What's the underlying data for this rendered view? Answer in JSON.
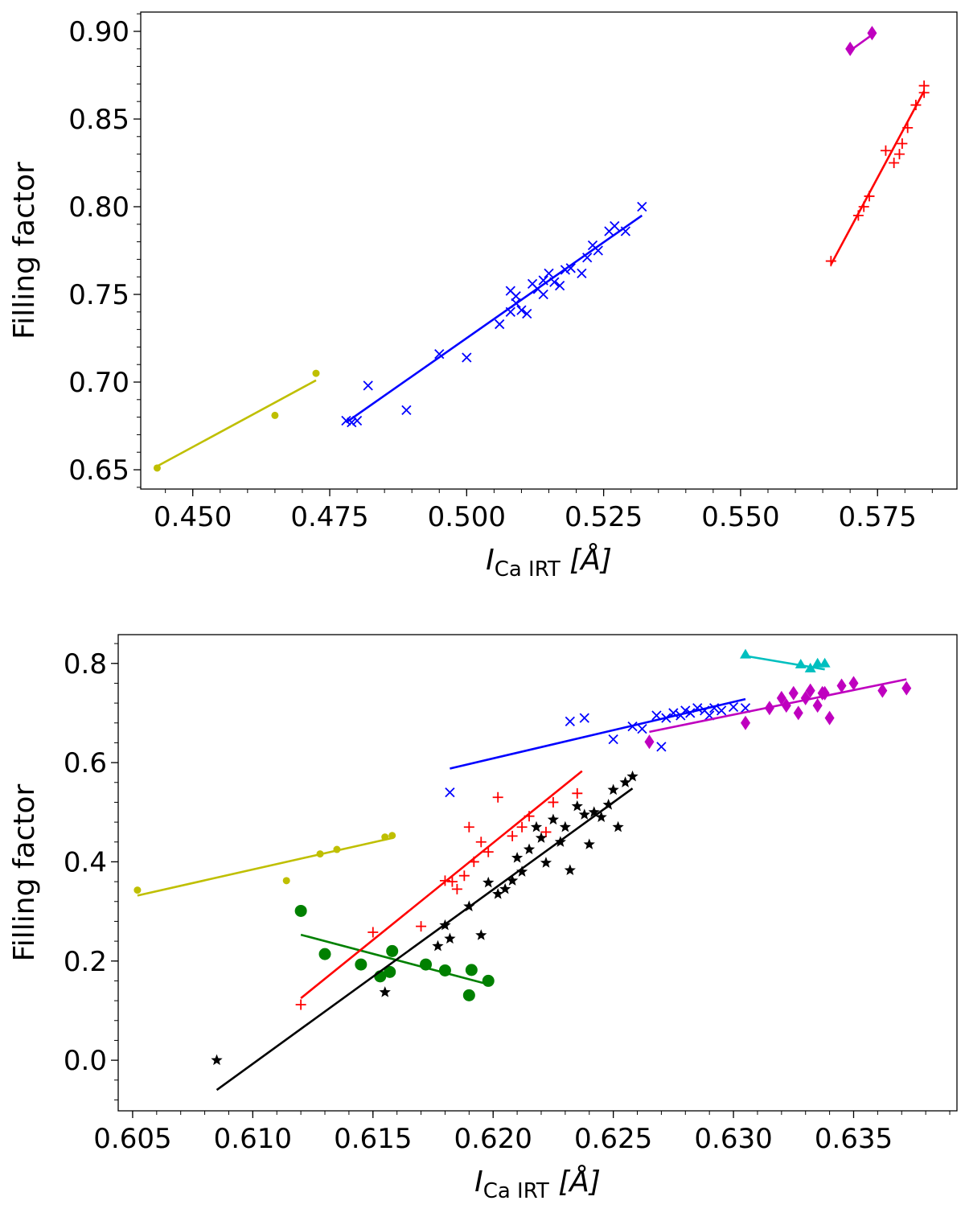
{
  "chart_data": [
    {
      "type": "scatter",
      "title": "",
      "xlabel": {
        "main": "I",
        "sub": "Ca IRT",
        "unit": "[Å]"
      },
      "ylabel": "Filling factor",
      "xlim": [
        0.4405,
        0.5895
      ],
      "ylim": [
        0.639,
        0.911
      ],
      "xticks": [
        0.45,
        0.475,
        0.5,
        0.525,
        0.55,
        0.575
      ],
      "xtick_labels": [
        "0.450",
        "0.475",
        "0.500",
        "0.525",
        "0.550",
        "0.575"
      ],
      "yticks": [
        0.65,
        0.7,
        0.75,
        0.8,
        0.85,
        0.9
      ],
      "ytick_labels": [
        "0.65",
        "0.70",
        "0.75",
        "0.80",
        "0.85",
        "0.90"
      ],
      "grid": false,
      "series": [
        {
          "name": "yellow-dot",
          "color": "#bfbf00",
          "marker": "dot",
          "x": [
            0.4435,
            0.465,
            0.4725
          ],
          "y": [
            0.651,
            0.681,
            0.705
          ],
          "fit": [
            [
              0.4435,
              0.652
            ],
            [
              0.4725,
              0.701
            ]
          ]
        },
        {
          "name": "blue-x",
          "color": "#0000ff",
          "marker": "x",
          "x": [
            0.478,
            0.479,
            0.48,
            0.482,
            0.489,
            0.495,
            0.5,
            0.506,
            0.508,
            0.509,
            0.508,
            0.51,
            0.509,
            0.511,
            0.512,
            0.513,
            0.514,
            0.514,
            0.515,
            0.516,
            0.517,
            0.518,
            0.519,
            0.521,
            0.522,
            0.523,
            0.524,
            0.526,
            0.527,
            0.529,
            0.532
          ],
          "y": [
            0.678,
            0.677,
            0.678,
            0.698,
            0.684,
            0.716,
            0.714,
            0.733,
            0.74,
            0.749,
            0.752,
            0.741,
            0.745,
            0.739,
            0.756,
            0.753,
            0.75,
            0.758,
            0.762,
            0.757,
            0.755,
            0.764,
            0.765,
            0.762,
            0.771,
            0.778,
            0.775,
            0.786,
            0.789,
            0.786,
            0.8
          ],
          "fit": [
            [
              0.478,
              0.677
            ],
            [
              0.532,
              0.795
            ]
          ]
        },
        {
          "name": "red-plus",
          "color": "#ff0000",
          "marker": "plus",
          "x": [
            0.5665,
            0.5715,
            0.5725,
            0.5735,
            0.5765,
            0.578,
            0.579,
            0.5795,
            0.5805,
            0.582,
            0.5835,
            0.5835
          ],
          "y": [
            0.769,
            0.795,
            0.8,
            0.806,
            0.832,
            0.825,
            0.83,
            0.836,
            0.845,
            0.858,
            0.865,
            0.869
          ],
          "fit": [
            [
              0.5665,
              0.767
            ],
            [
              0.5835,
              0.866
            ]
          ]
        },
        {
          "name": "magenta-diamond",
          "color": "#bf00bf",
          "marker": "diamond",
          "x": [
            0.57,
            0.574
          ],
          "y": [
            0.89,
            0.899
          ],
          "fit": [
            [
              0.57,
              0.889
            ],
            [
              0.574,
              0.898
            ]
          ]
        }
      ]
    },
    {
      "type": "scatter",
      "title": "",
      "xlabel": {
        "main": "I",
        "sub": "Ca IRT",
        "unit": "[Å]"
      },
      "ylabel": "Filling factor",
      "xlim": [
        0.6044,
        0.6393
      ],
      "ylim": [
        -0.102,
        0.858
      ],
      "xticks": [
        0.605,
        0.61,
        0.615,
        0.62,
        0.625,
        0.63,
        0.635
      ],
      "xtick_labels": [
        "0.605",
        "0.610",
        "0.615",
        "0.620",
        "0.625",
        "0.630",
        "0.635"
      ],
      "yticks": [
        0.0,
        0.2,
        0.4,
        0.6,
        0.8
      ],
      "ytick_labels": [
        "0.0",
        "0.2",
        "0.4",
        "0.6",
        "0.8"
      ],
      "grid": false,
      "series": [
        {
          "name": "yellow-dot",
          "color": "#bfbf00",
          "marker": "dot",
          "x": [
            0.6052,
            0.6114,
            0.6128,
            0.6135,
            0.6155,
            0.6158
          ],
          "y": [
            0.343,
            0.362,
            0.416,
            0.425,
            0.45,
            0.453
          ],
          "fit": [
            [
              0.6052,
              0.332
            ],
            [
              0.6158,
              0.448
            ]
          ]
        },
        {
          "name": "green-circle",
          "color": "#008000",
          "marker": "circle",
          "x": [
            0.612,
            0.613,
            0.6145,
            0.6153,
            0.6157,
            0.6158,
            0.6172,
            0.618,
            0.619,
            0.6191,
            0.6198
          ],
          "y": [
            0.301,
            0.214,
            0.193,
            0.169,
            0.178,
            0.22,
            0.193,
            0.181,
            0.131,
            0.182,
            0.16
          ],
          "fit": [
            [
              0.612,
              0.253
            ],
            [
              0.6198,
              0.153
            ]
          ]
        },
        {
          "name": "red-plus",
          "color": "#ff0000",
          "marker": "plus",
          "x": [
            0.612,
            0.615,
            0.617,
            0.618,
            0.6183,
            0.6185,
            0.6188,
            0.619,
            0.6192,
            0.6195,
            0.6198,
            0.6202,
            0.6208,
            0.6212,
            0.6215,
            0.6222,
            0.6225,
            0.6235
          ],
          "y": [
            0.112,
            0.258,
            0.27,
            0.362,
            0.36,
            0.345,
            0.372,
            0.47,
            0.4,
            0.44,
            0.42,
            0.53,
            0.452,
            0.47,
            0.492,
            0.46,
            0.52,
            0.538
          ],
          "fit": [
            [
              0.612,
              0.125
            ],
            [
              0.6237,
              0.583
            ]
          ]
        },
        {
          "name": "black-star",
          "color": "#000000",
          "marker": "star",
          "x": [
            0.6085,
            0.6155,
            0.6177,
            0.618,
            0.6182,
            0.619,
            0.6195,
            0.6198,
            0.6202,
            0.6205,
            0.6208,
            0.621,
            0.6212,
            0.6215,
            0.6218,
            0.622,
            0.6222,
            0.6225,
            0.6228,
            0.623,
            0.6232,
            0.6235,
            0.6238,
            0.624,
            0.6242,
            0.6245,
            0.6248,
            0.625,
            0.6252,
            0.6255,
            0.6258
          ],
          "y": [
            0.0,
            0.137,
            0.23,
            0.272,
            0.245,
            0.31,
            0.252,
            0.358,
            0.335,
            0.345,
            0.362,
            0.408,
            0.38,
            0.425,
            0.47,
            0.448,
            0.398,
            0.485,
            0.44,
            0.47,
            0.383,
            0.512,
            0.495,
            0.435,
            0.5,
            0.49,
            0.515,
            0.545,
            0.47,
            0.56,
            0.572
          ],
          "fit": [
            [
              0.6085,
              -0.06
            ],
            [
              0.6258,
              0.548
            ]
          ]
        },
        {
          "name": "blue-x",
          "color": "#0000ff",
          "marker": "x",
          "x": [
            0.6182,
            0.6232,
            0.6238,
            0.625,
            0.6258,
            0.6262,
            0.6268,
            0.627,
            0.6272,
            0.6275,
            0.6278,
            0.628,
            0.6282,
            0.6285,
            0.6288,
            0.629,
            0.6292,
            0.6295,
            0.63,
            0.6305
          ],
          "y": [
            0.54,
            0.683,
            0.69,
            0.647,
            0.673,
            0.668,
            0.695,
            0.632,
            0.69,
            0.7,
            0.695,
            0.705,
            0.7,
            0.71,
            0.705,
            0.695,
            0.71,
            0.705,
            0.712,
            0.71
          ],
          "fit": [
            [
              0.6182,
              0.588
            ],
            [
              0.6305,
              0.728
            ]
          ]
        },
        {
          "name": "magenta-diamond",
          "color": "#bf00bf",
          "marker": "diamond",
          "x": [
            0.6265,
            0.6305,
            0.6315,
            0.632,
            0.6322,
            0.6325,
            0.6327,
            0.633,
            0.6332,
            0.6335,
            0.6337,
            0.6338,
            0.634,
            0.6345,
            0.635,
            0.6362,
            0.6372
          ],
          "y": [
            0.642,
            0.68,
            0.71,
            0.73,
            0.715,
            0.74,
            0.7,
            0.73,
            0.745,
            0.715,
            0.74,
            0.74,
            0.69,
            0.755,
            0.76,
            0.745,
            0.75
          ],
          "fit": [
            [
              0.6265,
              0.662
            ],
            [
              0.6372,
              0.768
            ]
          ]
        },
        {
          "name": "cyan-triangle",
          "color": "#00bfbf",
          "marker": "triangle",
          "x": [
            0.6305,
            0.6328,
            0.6332,
            0.6335,
            0.6338
          ],
          "y": [
            0.818,
            0.798,
            0.79,
            0.8,
            0.8
          ],
          "fit": [
            [
              0.6305,
              0.815
            ],
            [
              0.6338,
              0.788
            ]
          ]
        }
      ]
    }
  ]
}
